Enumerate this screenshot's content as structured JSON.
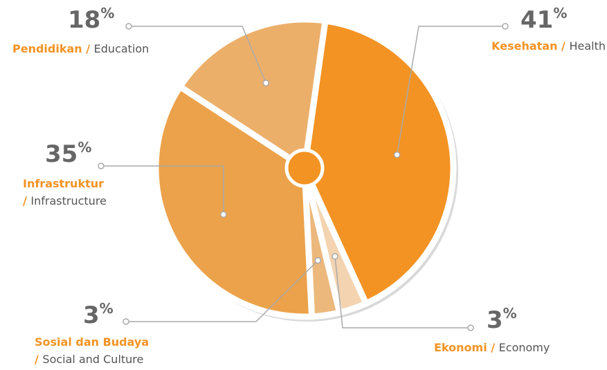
{
  "chart_data": {
    "type": "pie",
    "categories": [
      "Kesehatan / Health",
      "Ekonomi / Economy",
      "Sosial dan Budaya / Social and Culture",
      "Infrastruktur / Infrastructure",
      "Pendidikan / Education"
    ],
    "values": [
      41,
      3,
      3,
      35,
      18
    ],
    "value_labels": [
      "41%",
      "3%",
      "3%",
      "35%",
      "18%"
    ],
    "colors": [
      "#f39323",
      "#f3d3b0",
      "#ecb87c",
      "#eca24a",
      "#ecaf6a"
    ]
  }
}
